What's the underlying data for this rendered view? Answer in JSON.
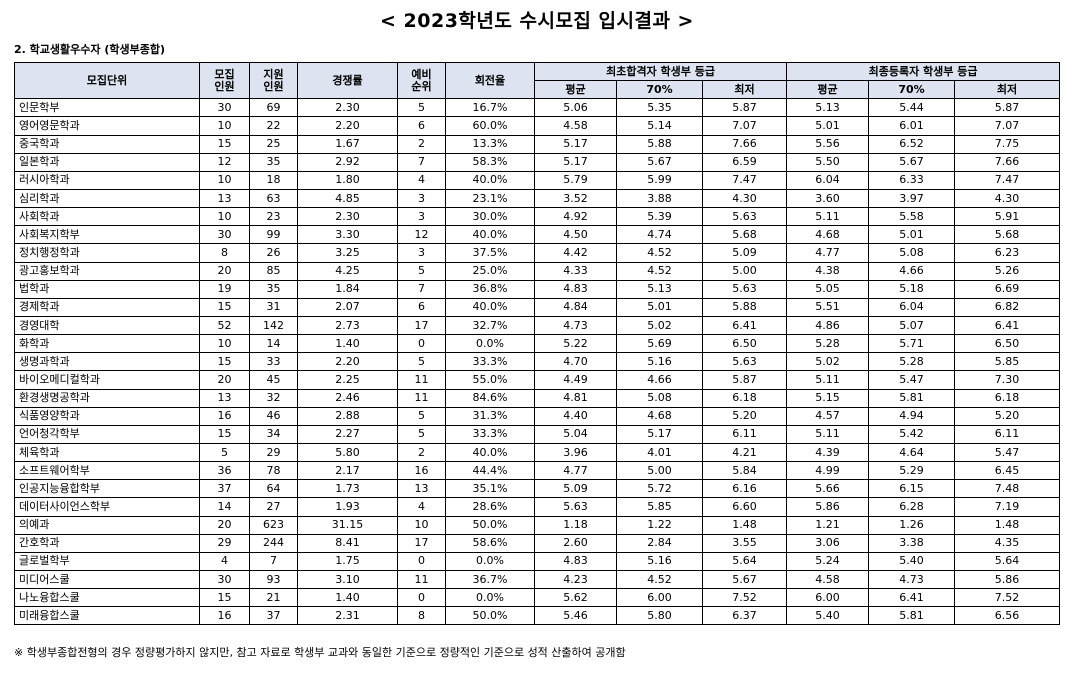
{
  "title": "< 2023학년도 수시모집 입시결과 >",
  "subtitle": "2. 학교생활우수자 (학생부종합)",
  "headers": {
    "unit": "모집단위",
    "quota": "모집\n인원",
    "applicants": "지원\n인원",
    "ratio": "경쟁률",
    "reserve": "예비\n순위",
    "turnover": "회전율",
    "group1": "최초합격자 학생부 등급",
    "group2": "최종등록자 학생부 등급",
    "avg": "평균",
    "p70": "70%",
    "min": "최저"
  },
  "rows": [
    [
      "인문학부",
      "30",
      "69",
      "2.30",
      "5",
      "16.7%",
      "5.06",
      "5.35",
      "5.87",
      "5.13",
      "5.44",
      "5.87"
    ],
    [
      "영어영문학과",
      "10",
      "22",
      "2.20",
      "6",
      "60.0%",
      "4.58",
      "5.14",
      "7.07",
      "5.01",
      "6.01",
      "7.07"
    ],
    [
      "중국학과",
      "15",
      "25",
      "1.67",
      "2",
      "13.3%",
      "5.17",
      "5.88",
      "7.66",
      "5.56",
      "6.52",
      "7.75"
    ],
    [
      "일본학과",
      "12",
      "35",
      "2.92",
      "7",
      "58.3%",
      "5.17",
      "5.67",
      "6.59",
      "5.50",
      "5.67",
      "7.66"
    ],
    [
      "러시아학과",
      "10",
      "18",
      "1.80",
      "4",
      "40.0%",
      "5.79",
      "5.99",
      "7.47",
      "6.04",
      "6.33",
      "7.47"
    ],
    [
      "심리학과",
      "13",
      "63",
      "4.85",
      "3",
      "23.1%",
      "3.52",
      "3.88",
      "4.30",
      "3.60",
      "3.97",
      "4.30"
    ],
    [
      "사회학과",
      "10",
      "23",
      "2.30",
      "3",
      "30.0%",
      "4.92",
      "5.39",
      "5.63",
      "5.11",
      "5.58",
      "5.91"
    ],
    [
      "사회복지학부",
      "30",
      "99",
      "3.30",
      "12",
      "40.0%",
      "4.50",
      "4.74",
      "5.68",
      "4.68",
      "5.01",
      "5.68"
    ],
    [
      "정치행정학과",
      "8",
      "26",
      "3.25",
      "3",
      "37.5%",
      "4.42",
      "4.52",
      "5.09",
      "4.77",
      "5.08",
      "6.23"
    ],
    [
      "광고홍보학과",
      "20",
      "85",
      "4.25",
      "5",
      "25.0%",
      "4.33",
      "4.52",
      "5.00",
      "4.38",
      "4.66",
      "5.26"
    ],
    [
      "법학과",
      "19",
      "35",
      "1.84",
      "7",
      "36.8%",
      "4.83",
      "5.13",
      "5.63",
      "5.05",
      "5.18",
      "6.69"
    ],
    [
      "경제학과",
      "15",
      "31",
      "2.07",
      "6",
      "40.0%",
      "4.84",
      "5.01",
      "5.88",
      "5.51",
      "6.04",
      "6.82"
    ],
    [
      "경영대학",
      "52",
      "142",
      "2.73",
      "17",
      "32.7%",
      "4.73",
      "5.02",
      "6.41",
      "4.86",
      "5.07",
      "6.41"
    ],
    [
      "화학과",
      "10",
      "14",
      "1.40",
      "0",
      "0.0%",
      "5.22",
      "5.69",
      "6.50",
      "5.28",
      "5.71",
      "6.50"
    ],
    [
      "생명과학과",
      "15",
      "33",
      "2.20",
      "5",
      "33.3%",
      "4.70",
      "5.16",
      "5.63",
      "5.02",
      "5.28",
      "5.85"
    ],
    [
      "바이오메디컬학과",
      "20",
      "45",
      "2.25",
      "11",
      "55.0%",
      "4.49",
      "4.66",
      "5.87",
      "5.11",
      "5.47",
      "7.30"
    ],
    [
      "환경생명공학과",
      "13",
      "32",
      "2.46",
      "11",
      "84.6%",
      "4.81",
      "5.08",
      "6.18",
      "5.15",
      "5.81",
      "6.18"
    ],
    [
      "식품영양학과",
      "16",
      "46",
      "2.88",
      "5",
      "31.3%",
      "4.40",
      "4.68",
      "5.20",
      "4.57",
      "4.94",
      "5.20"
    ],
    [
      "언어청각학부",
      "15",
      "34",
      "2.27",
      "5",
      "33.3%",
      "5.04",
      "5.17",
      "6.11",
      "5.11",
      "5.42",
      "6.11"
    ],
    [
      "체육학과",
      "5",
      "29",
      "5.80",
      "2",
      "40.0%",
      "3.96",
      "4.01",
      "4.21",
      "4.39",
      "4.64",
      "5.47"
    ],
    [
      "소프트웨어학부",
      "36",
      "78",
      "2.17",
      "16",
      "44.4%",
      "4.77",
      "5.00",
      "5.84",
      "4.99",
      "5.29",
      "6.45"
    ],
    [
      "인공지능융합학부",
      "37",
      "64",
      "1.73",
      "13",
      "35.1%",
      "5.09",
      "5.72",
      "6.16",
      "5.66",
      "6.15",
      "7.48"
    ],
    [
      "데이터사이언스학부",
      "14",
      "27",
      "1.93",
      "4",
      "28.6%",
      "5.63",
      "5.85",
      "6.60",
      "5.86",
      "6.28",
      "7.19"
    ],
    [
      "의예과",
      "20",
      "623",
      "31.15",
      "10",
      "50.0%",
      "1.18",
      "1.22",
      "1.48",
      "1.21",
      "1.26",
      "1.48"
    ],
    [
      "간호학과",
      "29",
      "244",
      "8.41",
      "17",
      "58.6%",
      "2.60",
      "2.84",
      "3.55",
      "3.06",
      "3.38",
      "4.35"
    ],
    [
      "글로벌학부",
      "4",
      "7",
      "1.75",
      "0",
      "0.0%",
      "4.83",
      "5.16",
      "5.64",
      "5.24",
      "5.40",
      "5.64"
    ],
    [
      "미디어스쿨",
      "30",
      "93",
      "3.10",
      "11",
      "36.7%",
      "4.23",
      "4.52",
      "5.67",
      "4.58",
      "4.73",
      "5.86"
    ],
    [
      "나노융합스쿨",
      "15",
      "21",
      "1.40",
      "0",
      "0.0%",
      "5.62",
      "6.00",
      "7.52",
      "6.00",
      "6.41",
      "7.52"
    ],
    [
      "미래융합스쿨",
      "16",
      "37",
      "2.31",
      "8",
      "50.0%",
      "5.46",
      "5.80",
      "6.37",
      "5.40",
      "5.81",
      "6.56"
    ]
  ],
  "footnote": "※ 학생부종합전형의 경우 정량평가하지 않지만, 참고 자료로 학생부 교과와 동일한 기준으로 정량적인 기준으로 성적 산출하여 공개함"
}
